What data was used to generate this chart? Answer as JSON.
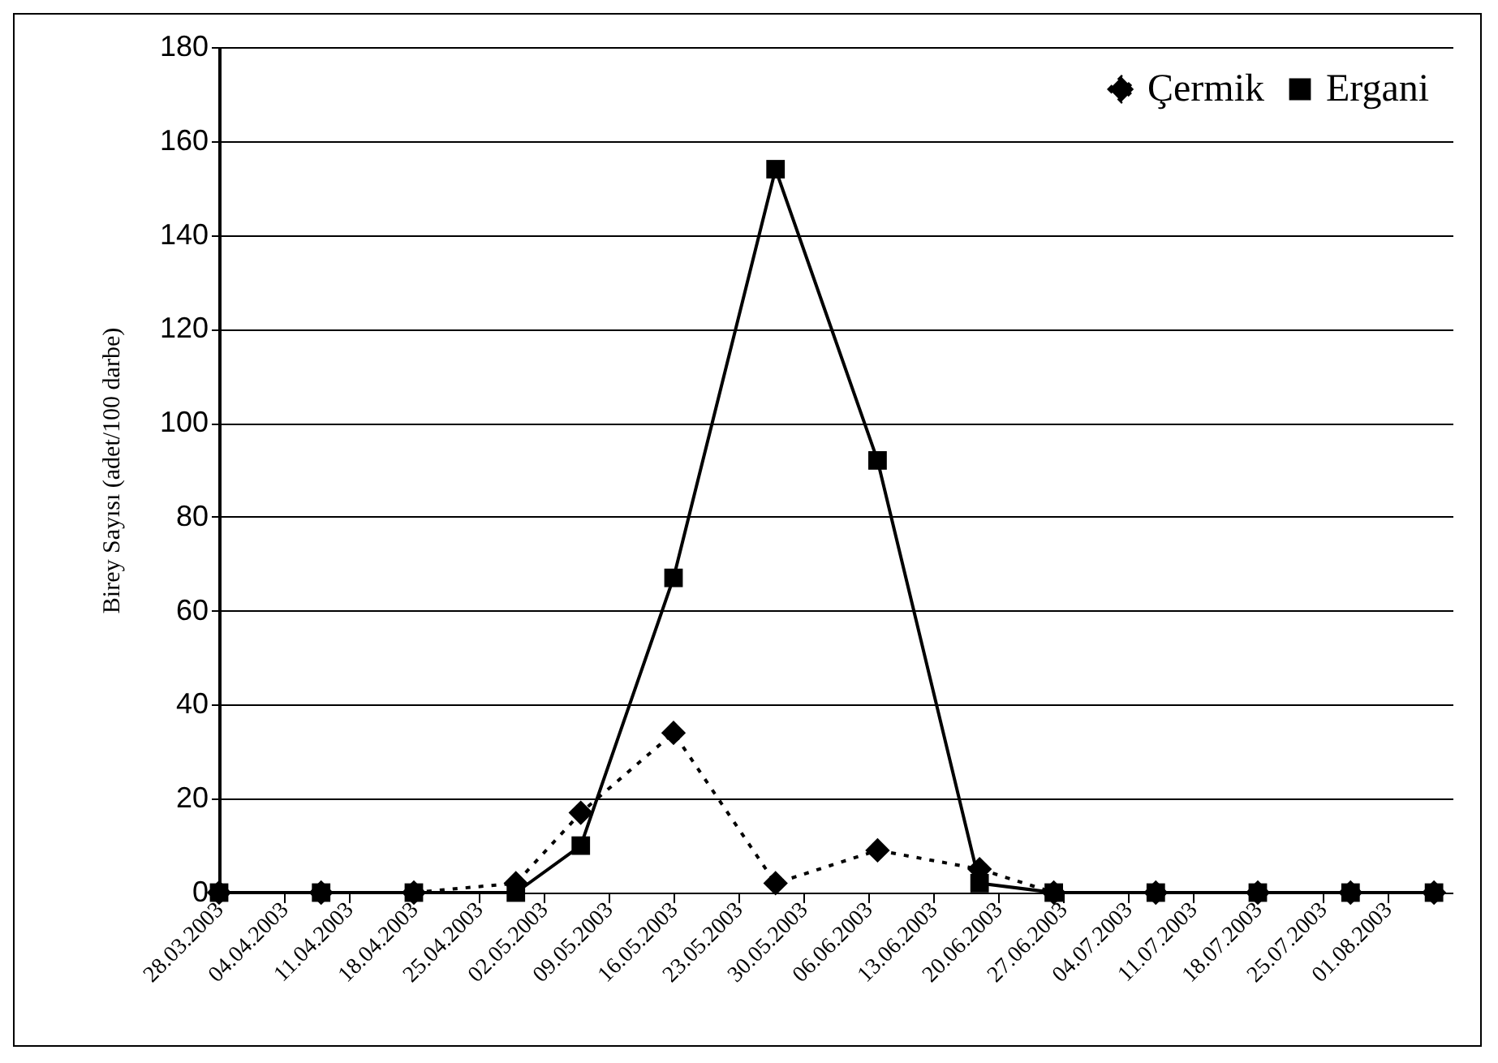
{
  "chart_data": {
    "type": "line",
    "ylabel": "Birey Sayısı (adet/100 darbe)",
    "x": [
      "2003-03-28",
      "2003-04-08",
      "2003-04-18",
      "2003-04-29",
      "2003-05-06",
      "2003-05-16",
      "2003-05-27",
      "2003-06-07",
      "2003-06-18",
      "2003-06-26",
      "2003-07-07",
      "2003-07-18",
      "2003-07-28",
      "2003-08-06"
    ],
    "series": [
      {
        "name": "Çermik",
        "color": "#000000",
        "marker": "diamond",
        "line_style": "dotted",
        "values": [
          0,
          0,
          0,
          2,
          17,
          34,
          2,
          9,
          5,
          0,
          0,
          0,
          0,
          0
        ]
      },
      {
        "name": "Ergani",
        "color": "#000000",
        "marker": "square",
        "line_style": "solid",
        "values": [
          0,
          0,
          0,
          0,
          10,
          67,
          154,
          92,
          2,
          0,
          0,
          0,
          0,
          0
        ]
      }
    ],
    "xlim": [
      "2003-03-28",
      "2003-08-08"
    ],
    "xticks": [
      {
        "value": "2003-03-28",
        "label": "28.03.2003"
      },
      {
        "value": "2003-04-04",
        "label": "04.04.2003"
      },
      {
        "value": "2003-04-11",
        "label": "11.04.2003"
      },
      {
        "value": "2003-04-18",
        "label": "18.04.2003"
      },
      {
        "value": "2003-04-25",
        "label": "25.04.2003"
      },
      {
        "value": "2003-05-02",
        "label": "02.05.2003"
      },
      {
        "value": "2003-05-09",
        "label": "09.05.2003"
      },
      {
        "value": "2003-05-16",
        "label": "16.05.2003"
      },
      {
        "value": "2003-05-23",
        "label": "23.05.2003"
      },
      {
        "value": "2003-05-30",
        "label": "30.05.2003"
      },
      {
        "value": "2003-06-06",
        "label": "06.06.2003"
      },
      {
        "value": "2003-06-13",
        "label": "13.06.2003"
      },
      {
        "value": "2003-06-20",
        "label": "20.06.2003"
      },
      {
        "value": "2003-06-27",
        "label": "27.06.2003"
      },
      {
        "value": "2003-07-04",
        "label": "04.07.2003"
      },
      {
        "value": "2003-07-11",
        "label": "11.07.2003"
      },
      {
        "value": "2003-07-18",
        "label": "18.07.2003"
      },
      {
        "value": "2003-07-25",
        "label": "25.07.2003"
      },
      {
        "value": "2003-08-01",
        "label": "01.08.2003"
      }
    ],
    "ylim": [
      0,
      180
    ],
    "yticks": [
      0,
      20,
      40,
      60,
      80,
      100,
      120,
      140,
      160,
      180
    ],
    "grid": "y",
    "legend": "top right"
  }
}
